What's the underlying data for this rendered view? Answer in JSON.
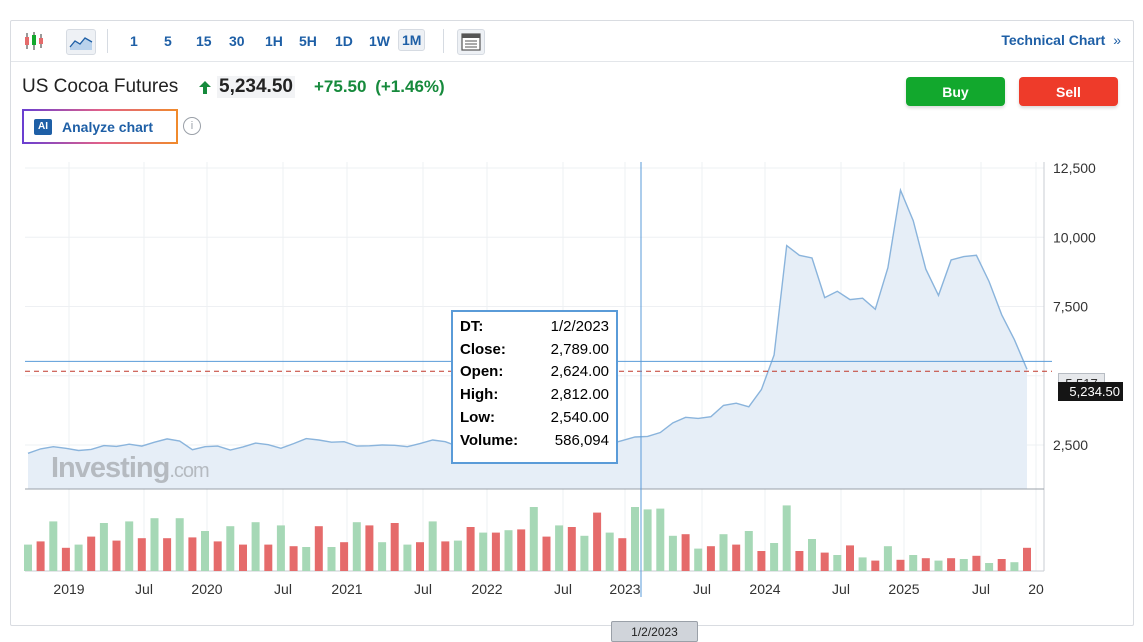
{
  "toolbar": {
    "timeframes": [
      "1",
      "5",
      "15",
      "30",
      "1H",
      "5H",
      "1D",
      "1W",
      "1M"
    ],
    "active_timeframe": "1M",
    "technical_chart_label": "Technical Chart",
    "technical_chart_chevron": "»"
  },
  "instrument": {
    "name": "US Cocoa Futures",
    "price": "5,234.50",
    "change": "+75.50",
    "change_pct": "(+1.46%)"
  },
  "actions": {
    "buy_label": "Buy",
    "sell_label": "Sell",
    "analyze_label": "Analyze chart",
    "ai_badge": "AI",
    "info_glyph": "i"
  },
  "colors": {
    "accent": "#1e5fa6",
    "up": "#168a3c",
    "buy": "#12a82d",
    "sell": "#ee3b2a",
    "area_line": "#8ab4dc",
    "area_fill": "#e6eef7",
    "volume_up": "#a6d8b6",
    "volume_down": "#e56b6b"
  },
  "watermark": {
    "brand": "Investing",
    "suffix": ".com"
  },
  "tooltip": {
    "rows": [
      {
        "k": "DT:",
        "v": "1/2/2023"
      },
      {
        "k": "Close:",
        "v": "2,789.00"
      },
      {
        "k": "Open:",
        "v": "2,624.00"
      },
      {
        "k": "High:",
        "v": "2,812.00"
      },
      {
        "k": "Low:",
        "v": "2,540.00"
      },
      {
        "k": "Volume:",
        "v": "586,094"
      }
    ]
  },
  "crosshair": {
    "date_label": "1/2/2023",
    "y_value_label": "5,517"
  },
  "last_price_label": "5,234.50",
  "chart_data": {
    "type": "area",
    "title": "",
    "y_ticks": [
      2500,
      5000,
      7500,
      10000,
      12500
    ],
    "y_tick_labels": [
      "2,500",
      "",
      "7,500",
      "10,000",
      "12,500"
    ],
    "ylim": [
      1500,
      12600
    ],
    "x_tick_labels": [
      "2019",
      "Jul",
      "2020",
      "Jul",
      "2021",
      "Jul",
      "2022",
      "Jul",
      "2023",
      "Jul",
      "2024",
      "Jul",
      "2025",
      "Jul",
      "20"
    ],
    "grid": true,
    "close": [
      2200,
      2360,
      2440,
      2380,
      2300,
      2340,
      2480,
      2450,
      2530,
      2460,
      2600,
      2720,
      2640,
      2330,
      2440,
      2460,
      2320,
      2430,
      2570,
      2510,
      2380,
      2550,
      2730,
      2680,
      2600,
      2620,
      2460,
      2470,
      2500,
      2490,
      2440,
      2550,
      2680,
      2620,
      2450,
      2500,
      2540,
      2560,
      2610,
      2480,
      2440,
      2320,
      2310,
      2370,
      2360,
      2470,
      2540,
      2660,
      2789,
      2810,
      2950,
      3300,
      3500,
      3460,
      3520,
      3930,
      4010,
      3880,
      4500,
      5750,
      9700,
      9350,
      9250,
      7820,
      8050,
      7750,
      7800,
      7400,
      8900,
      11700,
      10600,
      8850,
      7900,
      9180,
      9300,
      9350,
      8400,
      7200,
      6300,
      5234.5
    ],
    "volume_up": [
      true,
      false,
      true,
      false,
      true,
      false,
      true,
      false,
      true,
      false,
      true,
      false,
      true,
      false,
      true,
      false,
      true,
      false,
      true,
      false,
      true,
      false,
      true,
      false,
      true,
      false,
      true,
      false,
      true,
      false,
      true,
      false,
      true,
      false,
      true,
      false,
      true,
      false,
      true,
      false,
      true,
      false,
      true,
      false,
      true,
      false,
      true,
      false,
      true,
      true,
      true,
      true,
      false,
      true,
      false,
      true,
      false,
      true,
      false,
      true,
      true,
      false,
      true,
      false,
      true,
      false,
      true,
      false,
      true,
      false,
      true,
      false,
      true,
      false,
      true,
      false,
      true,
      false,
      true,
      false
    ],
    "volume_rel": [
      0.33,
      0.37,
      0.62,
      0.29,
      0.33,
      0.43,
      0.6,
      0.38,
      0.62,
      0.41,
      0.66,
      0.41,
      0.66,
      0.42,
      0.5,
      0.37,
      0.56,
      0.33,
      0.61,
      0.33,
      0.57,
      0.31,
      0.3,
      0.56,
      0.3,
      0.36,
      0.61,
      0.57,
      0.36,
      0.6,
      0.33,
      0.36,
      0.62,
      0.37,
      0.38,
      0.55,
      0.48,
      0.48,
      0.51,
      0.52,
      0.8,
      0.43,
      0.57,
      0.55,
      0.44,
      0.73,
      0.48,
      0.41,
      0.8,
      0.77,
      0.78,
      0.44,
      0.46,
      0.28,
      0.31,
      0.46,
      0.33,
      0.5,
      0.25,
      0.35,
      0.82,
      0.25,
      0.4,
      0.23,
      0.2,
      0.32,
      0.17,
      0.13,
      0.31,
      0.14,
      0.2,
      0.16,
      0.13,
      0.16,
      0.15,
      0.19,
      0.1,
      0.15,
      0.11,
      0.29
    ],
    "volume_labels_shown": false
  }
}
